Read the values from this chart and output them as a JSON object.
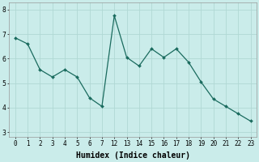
{
  "labels": [
    "0",
    "1",
    "2",
    "3",
    "4",
    "5",
    "6",
    "7",
    "12",
    "13",
    "14",
    "15",
    "16",
    "17",
    "18",
    "19",
    "20",
    "21",
    "22",
    "23"
  ],
  "y": [
    6.85,
    6.6,
    5.55,
    5.25,
    5.55,
    5.25,
    4.4,
    4.05,
    7.75,
    6.05,
    5.7,
    6.4,
    6.05,
    6.4,
    5.85,
    5.05,
    4.35,
    4.05,
    3.75,
    3.45
  ],
  "xlabel": "Humidex (Indice chaleur)",
  "bg_color": "#caecea",
  "grid_color": "#b0d8d4",
  "line_color": "#1a6b5e",
  "marker_color": "#1a6b5e",
  "ylim": [
    2.8,
    8.3
  ],
  "yticks": [
    3,
    4,
    5,
    6,
    7,
    8
  ],
  "tick_fontsize": 5.5,
  "xlabel_fontsize": 7
}
